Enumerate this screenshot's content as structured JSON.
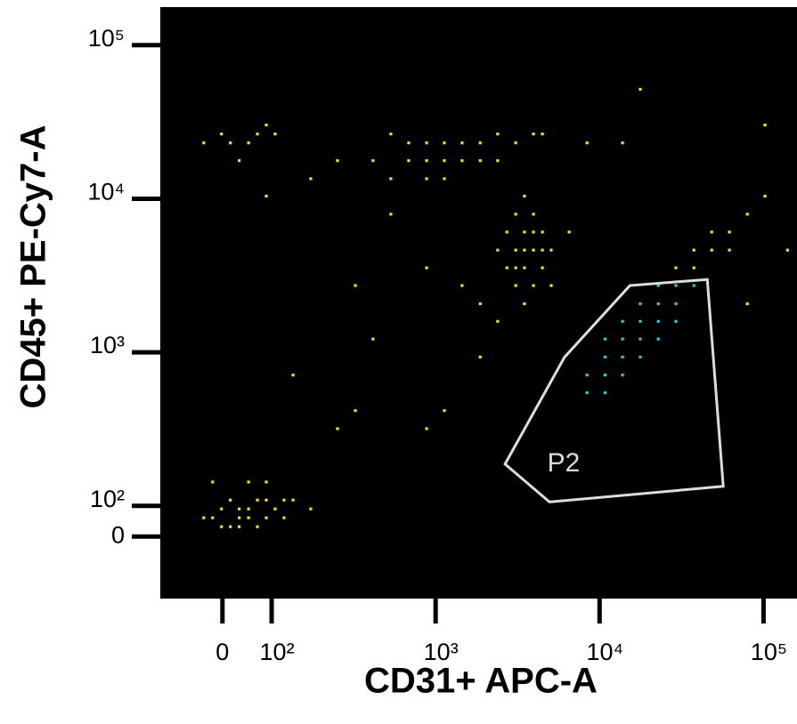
{
  "chart_data": {
    "type": "scatter",
    "xlabel": "CD31+ APC-A",
    "ylabel": "CD45+ PE-Cy7-A",
    "xscale": {
      "type": "symlog",
      "linthresh": 100,
      "linscale": 0.3
    },
    "yscale": {
      "type": "symlog",
      "linthresh": 100,
      "linscale": 0.2
    },
    "xlim": [
      -120,
      160000
    ],
    "ylim": [
      -160,
      177000
    ],
    "xticks": [
      0,
      {
        "value": 100,
        "label": "10²"
      },
      {
        "value": 1000,
        "label": "10³"
      },
      {
        "value": 10000,
        "label": "10⁴"
      },
      {
        "value": 100000,
        "label": "10⁵"
      }
    ],
    "yticks": [
      0,
      {
        "value": 100,
        "label": "10²"
      },
      {
        "value": 1000,
        "label": "10³"
      },
      {
        "value": 10000,
        "label": "10⁴"
      },
      {
        "value": 100000,
        "label": "10⁵"
      }
    ],
    "background": "#000000",
    "series": [
      {
        "color": "#f2e400",
        "x": [
          -20,
          -2,
          16,
          34,
          53,
          71,
          89,
          105,
          16,
          53,
          89,
          119,
          135,
          34,
          71,
          -20,
          173,
          -2,
          53,
          34,
          89,
          119,
          -38,
          -38,
          -2,
          34,
          53,
          71,
          89,
          16,
          105,
          89,
          173,
          252,
          533,
          685,
          881,
          1130,
          1450,
          1870,
          2390,
          3080,
          3950,
          881,
          1130,
          1450,
          685,
          533,
          415,
          1870,
          2390,
          4480,
          1130,
          881,
          3080,
          3480,
          3950,
          3480,
          3080,
          4480,
          3950,
          2720,
          5070,
          3480,
          3950,
          3080,
          2720,
          4480,
          2390,
          3480,
          3950,
          3080,
          5070,
          1870,
          2390,
          4480,
          3480,
          29200,
          37600,
          48300,
          48300,
          61900,
          79600,
          37600,
          61900,
          102000,
          324,
          415,
          252,
          881,
          1130,
          135,
          13800,
          17700,
          8380,
          79600,
          140000,
          102000,
          533,
          324,
          881,
          1450,
          1870,
          6520
        ],
        "y": [
          61,
          90,
          32,
          61,
          90,
          32,
          61,
          90,
          109,
          143,
          109,
          61,
          109,
          32,
          109,
          143,
          90,
          32,
          61,
          90,
          143,
          109,
          61,
          23100,
          26400,
          17700,
          23100,
          26400,
          30200,
          23100,
          26400,
          10400,
          13500,
          17700,
          26400,
          17700,
          23100,
          17700,
          23100,
          23100,
          26400,
          23100,
          26400,
          13500,
          23100,
          17700,
          23100,
          13500,
          17700,
          17700,
          17700,
          26400,
          13500,
          17700,
          7930,
          6070,
          4630,
          3550,
          4630,
          3550,
          2720,
          6070,
          4630,
          10400,
          7930,
          2720,
          3550,
          6070,
          4630,
          2070,
          6070,
          3550,
          2720,
          2070,
          1590,
          4630,
          4630,
          3550,
          4630,
          4630,
          6070,
          6070,
          7930,
          3550,
          4630,
          10400,
          417,
          1220,
          318,
          318,
          417,
          711,
          23100,
          51600,
          23100,
          2070,
          4630,
          30200,
          7930,
          2720,
          3550,
          2720,
          931,
          6070
        ]
      },
      {
        "color": "#33c8d8",
        "x": [
          8380,
          10800,
          10800,
          13800,
          13800,
          17700,
          17700,
          22800,
          22800,
          29200,
          29200,
          37600,
          8380,
          10800,
          13800,
          17700,
          22800,
          29200,
          17700,
          22800,
          13800,
          10800
        ],
        "y": [
          545,
          711,
          931,
          931,
          1220,
          1220,
          1590,
          1590,
          2070,
          2070,
          2720,
          2720,
          711,
          545,
          711,
          931,
          1220,
          1590,
          2070,
          2720,
          1590,
          1220
        ]
      }
    ],
    "gate": {
      "label": "P2",
      "color": "#dddddd",
      "x": [
        2650,
        4950,
        56800,
        45400,
        15300,
        6120
      ],
      "y": [
        187,
        106,
        134,
        2980,
        2720,
        931
      ]
    }
  }
}
